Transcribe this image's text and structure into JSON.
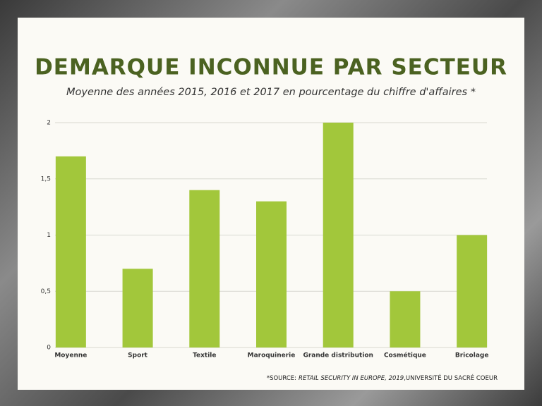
{
  "chart_data": {
    "type": "bar",
    "title": "DEMARQUE INCONNUE PAR SECTEUR",
    "subtitle": "Moyenne des années 2015, 2016 et 2017 en pourcentage du chiffre d'affaires *",
    "categories": [
      "Moyenne",
      "Sport",
      "Textile",
      "Maroquinerie",
      "Grande distribution",
      "Cosmétique",
      "Bricolage"
    ],
    "values": [
      1.7,
      0.7,
      1.4,
      1.3,
      2,
      0.5,
      1
    ],
    "color": "#a2c73b",
    "ylim": [
      0,
      2
    ],
    "yticks": [
      0,
      {
        "value": 0.5,
        "label": "0,5"
      },
      1,
      {
        "value": 1.5,
        "label": "1,5"
      },
      2
    ],
    "grid": true,
    "source": {
      "prefix": "*SOURCE:",
      "italic": "RETAIL SECURITY IN EUROPE, 2019",
      "suffix": ",UNIVERSITÉ DU SACRÉ COEUR"
    }
  }
}
